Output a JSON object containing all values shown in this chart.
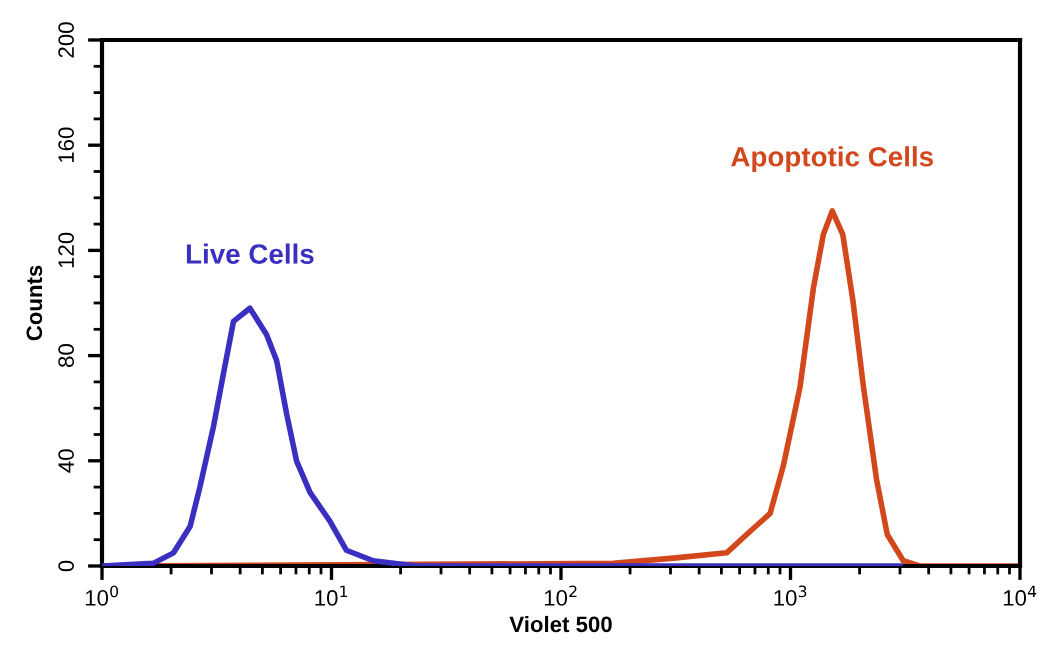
{
  "chart_data": {
    "type": "line",
    "xlabel": "Violet 500",
    "ylabel": "Counts",
    "log": "x",
    "xlim": [
      1,
      10000
    ],
    "xticks": [
      {
        "value": 1,
        "label": "10$^{0}$"
      },
      {
        "value": 10,
        "label": "10$^{1}$"
      },
      {
        "value": 100,
        "label": "10$^{2}$"
      },
      {
        "value": 1000,
        "label": "10$^{3}$"
      },
      {
        "value": 10000,
        "label": "10$^{4}$"
      }
    ],
    "ylim": [
      0,
      200
    ],
    "yticks": [
      0,
      40,
      80,
      120,
      160,
      200
    ],
    "grid": false,
    "legend": false,
    "marker": "none",
    "line_style": "solid",
    "series": [
      {
        "name": "Live Cells",
        "color": "#3a2fc0",
        "x": [
          1.0,
          1.67,
          2.05,
          2.42,
          2.67,
          3.06,
          3.38,
          3.74,
          4.41,
          5.21,
          5.77,
          6.37,
          7.04,
          8.06,
          9.85,
          11.6,
          15.2,
          23.3,
          3000
        ],
        "values": [
          0,
          1,
          5,
          15,
          30,
          53,
          73,
          93,
          98,
          88,
          78,
          58,
          40,
          28,
          17,
          6,
          2,
          0,
          0
        ]
      },
      {
        "name": "Apoptotic Cells",
        "color": "#d2481c",
        "x": [
          1.0,
          169,
          309,
          527,
          644,
          815,
          930,
          1100,
          1260,
          1390,
          1520,
          1690,
          1870,
          2080,
          2370,
          2640,
          3100,
          3650,
          10000
        ],
        "values": [
          0,
          1,
          3,
          5,
          12,
          20,
          38,
          68,
          106,
          126,
          135,
          126,
          101,
          68,
          33,
          12,
          2,
          0,
          0
        ]
      }
    ]
  }
}
